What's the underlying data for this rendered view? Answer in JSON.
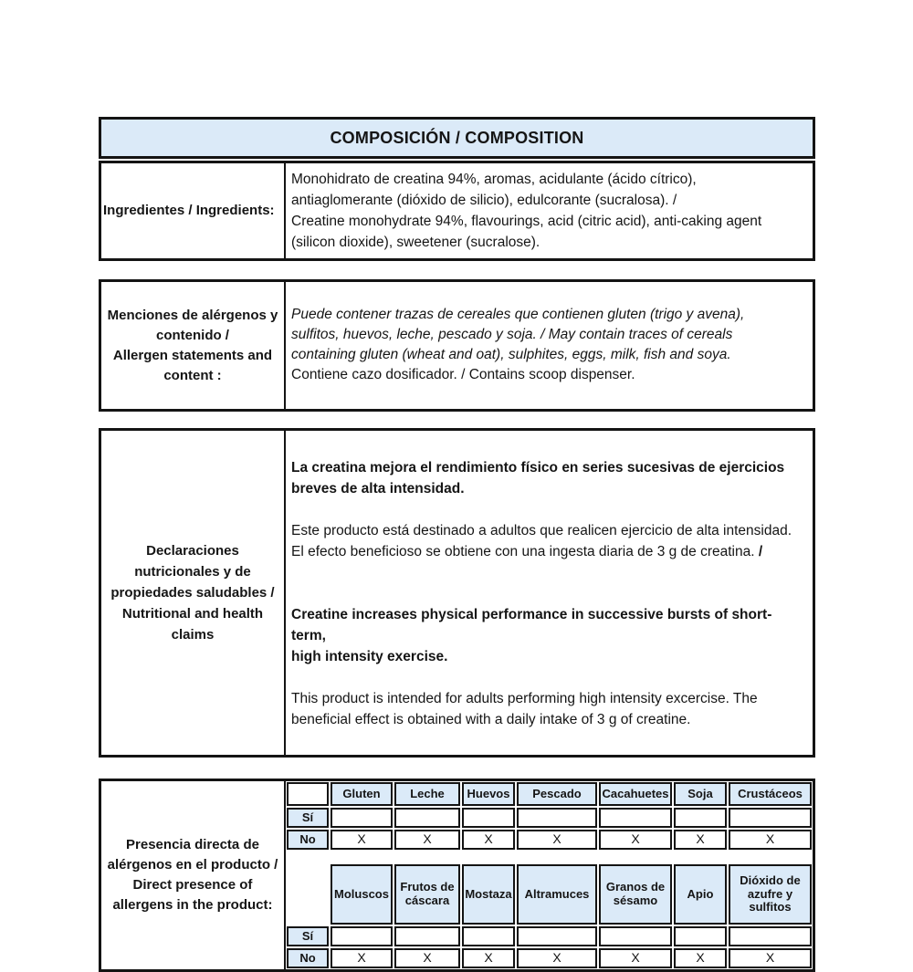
{
  "title": "COMPOSICIÓN / COMPOSITION",
  "colors": {
    "cell_fill": "#dbeaf8",
    "border": "#141414",
    "text": "#151515"
  },
  "ingredients": {
    "label": "Ingredientes / Ingredients:",
    "text": "Monohidrato de creatina 94%, aromas, acidulante (ácido cítrico),\nantiaglomerante (dióxido de silicio), edulcorante (sucralosa). /\nCreatine monohydrate 94%, flavourings, acid (citric acid), anti-caking agent\n(silicon dioxide), sweetener (sucralose)."
  },
  "allergen_statements": {
    "label": "Menciones de alérgenos y\ncontenido /\nAllergen statements and\ncontent :",
    "italic_text": "Puede contener trazas de cereales que contienen gluten (trigo y avena),\nsulfitos, huevos, leche, pescado y soja. / May contain traces of cereals\ncontaining gluten (wheat and oat), sulphites, eggs, milk, fish and soya.",
    "regular_text": "Contiene cazo dosificador. / Contains scoop dispenser."
  },
  "claims": {
    "label": "Declaraciones\nnutricionales y de\npropiedades saludables /\nNutritional and health\nclaims",
    "es_bold": "La creatina mejora el rendimiento físico en series sucesivas de ejercicios\nbreves de alta intensidad.",
    "es_regular": "Este producto está destinado a adultos que realicen ejercicio de alta intensidad.\nEl efecto beneficioso se obtiene con una ingesta diaria de 3 g de creatina. ",
    "es_slash": "/",
    "en_bold": "Creatine increases physical performance in successive bursts of short-term,\nhigh intensity exercise.",
    "en_regular": "This product is intended for adults performing high intensity excercise. The\nbeneficial effect is obtained with a daily intake of 3 g of creatine."
  },
  "allergen_table": {
    "label": "Presencia directa de\nalérgenos en el producto /\nDirect presence of\nallergens in the product:",
    "yes_label": "Sí",
    "no_label": "No",
    "group1": {
      "headers": [
        "Gluten",
        "Leche",
        "Huevos",
        "Pescado",
        "Cacahuetes",
        "Soja",
        "Crustáceos"
      ],
      "yes": [
        "",
        "",
        "",
        "",
        "",
        "",
        ""
      ],
      "no": [
        "X",
        "X",
        "X",
        "X",
        "X",
        "X",
        "X"
      ]
    },
    "group2": {
      "headers": [
        "Moluscos",
        "Frutos de cáscara",
        "Mostaza",
        "Altramuces",
        "Granos de sésamo",
        "Apio",
        "Dióxido de azufre y sulfitos"
      ],
      "yes": [
        "",
        "",
        "",
        "",
        "",
        "",
        ""
      ],
      "no": [
        "X",
        "X",
        "X",
        "X",
        "X",
        "X",
        "X"
      ]
    }
  }
}
